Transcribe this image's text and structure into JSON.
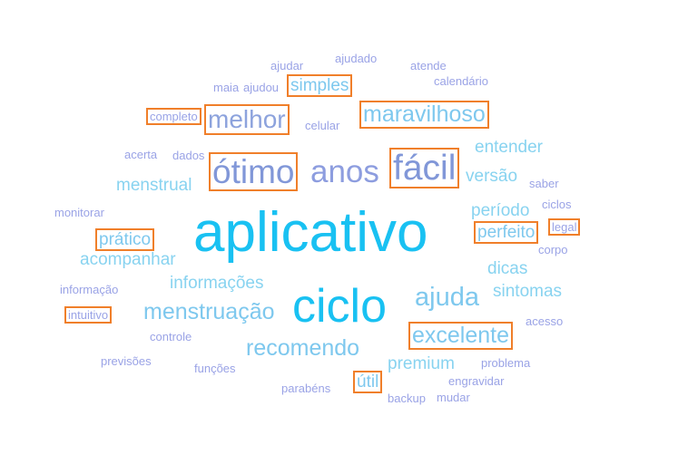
{
  "colors": {
    "highlight_border": "#f07f2a"
  },
  "words": [
    {
      "key": "ajudar",
      "text": "ajudar",
      "color": "#9aa3e6",
      "highlighted": false
    },
    {
      "key": "ajudado",
      "text": "ajudado",
      "color": "#9aa3e6",
      "highlighted": false
    },
    {
      "key": "atende",
      "text": "atende",
      "color": "#9aa3e6",
      "highlighted": false
    },
    {
      "key": "calendario",
      "text": "calendário",
      "color": "#9aa3e6",
      "highlighted": false
    },
    {
      "key": "maia",
      "text": "maia",
      "color": "#9aa3e6",
      "highlighted": false
    },
    {
      "key": "ajudou",
      "text": "ajudou",
      "color": "#9aa3e6",
      "highlighted": false
    },
    {
      "key": "simples",
      "text": "simples",
      "color": "#7ec8ee",
      "highlighted": true
    },
    {
      "key": "completo",
      "text": "completo",
      "color": "#9aa3e6",
      "highlighted": true
    },
    {
      "key": "melhor",
      "text": "melhor",
      "color": "#8da3dd",
      "highlighted": true
    },
    {
      "key": "celular",
      "text": "celular",
      "color": "#9aa3e6",
      "highlighted": false
    },
    {
      "key": "maravilhoso",
      "text": "maravilhoso",
      "color": "#7ec8ee",
      "highlighted": true
    },
    {
      "key": "entender",
      "text": "entender",
      "color": "#88d3f0",
      "highlighted": false
    },
    {
      "key": "acerta",
      "text": "acerta",
      "color": "#9aa3e6",
      "highlighted": false
    },
    {
      "key": "dados",
      "text": "dados",
      "color": "#9aa3e6",
      "highlighted": false
    },
    {
      "key": "otimo",
      "text": "ótimo",
      "color": "#8197d8",
      "highlighted": true
    },
    {
      "key": "anos",
      "text": "anos",
      "color": "#8d9ddf",
      "highlighted": false
    },
    {
      "key": "facil",
      "text": "fácil",
      "color": "#8197d8",
      "highlighted": true
    },
    {
      "key": "versao",
      "text": "versão",
      "color": "#88d3f0",
      "highlighted": false
    },
    {
      "key": "saber",
      "text": "saber",
      "color": "#9aa3e6",
      "highlighted": false
    },
    {
      "key": "menstrual",
      "text": "menstrual",
      "color": "#88d3f0",
      "highlighted": false
    },
    {
      "key": "ciclos",
      "text": "ciclos",
      "color": "#9aa3e6",
      "highlighted": false
    },
    {
      "key": "monitorar",
      "text": "monitorar",
      "color": "#9aa3e6",
      "highlighted": false
    },
    {
      "key": "aplicativo",
      "text": "aplicativo",
      "color": "#19c1f2",
      "highlighted": false
    },
    {
      "key": "periodo",
      "text": "período",
      "color": "#88d3f0",
      "highlighted": false
    },
    {
      "key": "perfeito",
      "text": "perfeito",
      "color": "#7ec8ee",
      "highlighted": true
    },
    {
      "key": "legal",
      "text": "legal",
      "color": "#9aa3e6",
      "highlighted": true
    },
    {
      "key": "pratico",
      "text": "prático",
      "color": "#7ec8ee",
      "highlighted": true
    },
    {
      "key": "corpo",
      "text": "corpo",
      "color": "#9aa3e6",
      "highlighted": false
    },
    {
      "key": "acompanhar",
      "text": "acompanhar",
      "color": "#88d3f0",
      "highlighted": false
    },
    {
      "key": "dicas",
      "text": "dicas",
      "color": "#88d3f0",
      "highlighted": false
    },
    {
      "key": "informacoes",
      "text": "informações",
      "color": "#88d3f0",
      "highlighted": false
    },
    {
      "key": "informacao",
      "text": "informação",
      "color": "#9aa3e6",
      "highlighted": false
    },
    {
      "key": "ajuda",
      "text": "ajuda",
      "color": "#7ec8ee",
      "highlighted": false
    },
    {
      "key": "sintomas",
      "text": "sintomas",
      "color": "#88d3f0",
      "highlighted": false
    },
    {
      "key": "ciclo",
      "text": "ciclo",
      "color": "#19c1f2",
      "highlighted": false
    },
    {
      "key": "intuitivo",
      "text": "intuitivo",
      "color": "#9aa3e6",
      "highlighted": true
    },
    {
      "key": "menstruacao",
      "text": "menstruação",
      "color": "#7ec8ee",
      "highlighted": false
    },
    {
      "key": "acesso",
      "text": "acesso",
      "color": "#9aa3e6",
      "highlighted": false
    },
    {
      "key": "controle",
      "text": "controle",
      "color": "#9aa3e6",
      "highlighted": false
    },
    {
      "key": "excelente",
      "text": "excelente",
      "color": "#7ec8ee",
      "highlighted": true
    },
    {
      "key": "recomendo",
      "text": "recomendo",
      "color": "#7ec8ee",
      "highlighted": false
    },
    {
      "key": "previsoes",
      "text": "previsões",
      "color": "#9aa3e6",
      "highlighted": false
    },
    {
      "key": "premium",
      "text": "premium",
      "color": "#88d3f0",
      "highlighted": false
    },
    {
      "key": "problema",
      "text": "problema",
      "color": "#9aa3e6",
      "highlighted": false
    },
    {
      "key": "funcoes",
      "text": "funções",
      "color": "#9aa3e6",
      "highlighted": false
    },
    {
      "key": "engravidar",
      "text": "engravidar",
      "color": "#9aa3e6",
      "highlighted": false
    },
    {
      "key": "parabens",
      "text": "parabéns",
      "color": "#9aa3e6",
      "highlighted": false
    },
    {
      "key": "util",
      "text": "útil",
      "color": "#7ec8ee",
      "highlighted": true
    },
    {
      "key": "backup",
      "text": "backup",
      "color": "#9aa3e6",
      "highlighted": false
    },
    {
      "key": "mudar",
      "text": "mudar",
      "color": "#9aa3e6",
      "highlighted": false
    }
  ]
}
